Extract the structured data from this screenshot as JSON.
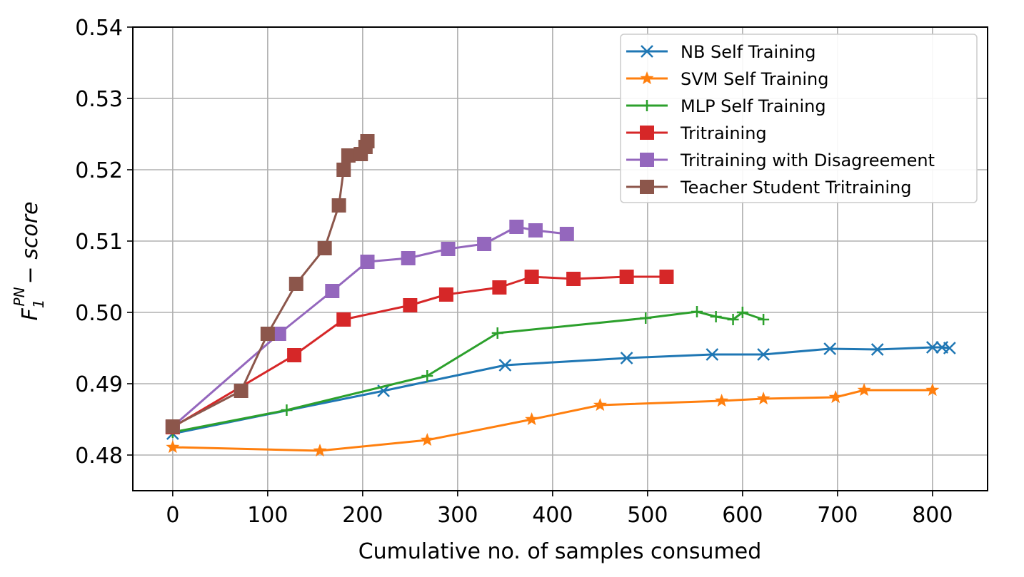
{
  "chart_data": {
    "type": "line",
    "title": "",
    "xlabel": "Cumulative no. of samples consumed",
    "ylabel_base": "F",
    "ylabel_sub": "1",
    "ylabel_sup": "PN",
    "ylabel_suffix": "− score",
    "xlim": [
      -42,
      858
    ],
    "ylim": [
      0.475,
      0.54
    ],
    "xticks": [
      0,
      100,
      200,
      300,
      400,
      500,
      600,
      700,
      800
    ],
    "yticks": [
      0.48,
      0.49,
      0.5,
      0.51,
      0.52,
      0.53,
      0.54
    ],
    "xtick_labels": [
      "0",
      "100",
      "200",
      "300",
      "400",
      "500",
      "600",
      "700",
      "800"
    ],
    "ytick_labels": [
      "0.48",
      "0.49",
      "0.50",
      "0.51",
      "0.52",
      "0.53",
      "0.54"
    ],
    "grid": true,
    "legend_position": "top-right",
    "series": [
      {
        "name": "NB Self Training",
        "color": "#1f77b4",
        "marker": "x",
        "x": [
          0,
          222,
          350,
          478,
          568,
          622,
          692,
          742,
          800,
          810,
          818
        ],
        "y": [
          0.483,
          0.489,
          0.4926,
          0.4936,
          0.4941,
          0.4941,
          0.4949,
          0.4948,
          0.4951,
          0.4951,
          0.495
        ]
      },
      {
        "name": "SVM Self Training",
        "color": "#ff7f0e",
        "marker": "star",
        "x": [
          0,
          155,
          268,
          378,
          450,
          578,
          622,
          698,
          728,
          800
        ],
        "y": [
          0.4811,
          0.4806,
          0.4821,
          0.485,
          0.487,
          0.4876,
          0.4879,
          0.4881,
          0.4891,
          0.4891
        ]
      },
      {
        "name": "MLP Self Training",
        "color": "#2ca02c",
        "marker": "plus",
        "x": [
          0,
          120,
          268,
          342,
          498,
          552,
          572,
          590,
          600,
          622
        ],
        "y": [
          0.4832,
          0.4863,
          0.4911,
          0.4971,
          0.4992,
          0.5001,
          0.4994,
          0.499,
          0.5,
          0.499
        ]
      },
      {
        "name": "Tritraining",
        "color": "#d62728",
        "marker": "square",
        "x": [
          0,
          128,
          180,
          250,
          288,
          344,
          378,
          422,
          478,
          520
        ],
        "y": [
          0.4839,
          0.494,
          0.499,
          0.501,
          0.5025,
          0.5035,
          0.505,
          0.5047,
          0.505,
          0.505
        ]
      },
      {
        "name": "Tritraining with Disagreement",
        "color": "#9467bd",
        "marker": "square",
        "x": [
          0,
          112,
          168,
          205,
          248,
          290,
          328,
          362,
          382,
          415
        ],
        "y": [
          0.484,
          0.497,
          0.503,
          0.5071,
          0.5076,
          0.5089,
          0.5096,
          0.512,
          0.5115,
          0.511
        ]
      },
      {
        "name": "Teacher Student Tritraining",
        "color": "#8c564b",
        "marker": "square",
        "x": [
          0,
          72,
          100,
          130,
          160,
          175,
          180,
          185,
          198,
          203,
          205
        ],
        "y": [
          0.484,
          0.489,
          0.497,
          0.504,
          0.509,
          0.515,
          0.52,
          0.522,
          0.5222,
          0.5232,
          0.524
        ]
      }
    ]
  }
}
